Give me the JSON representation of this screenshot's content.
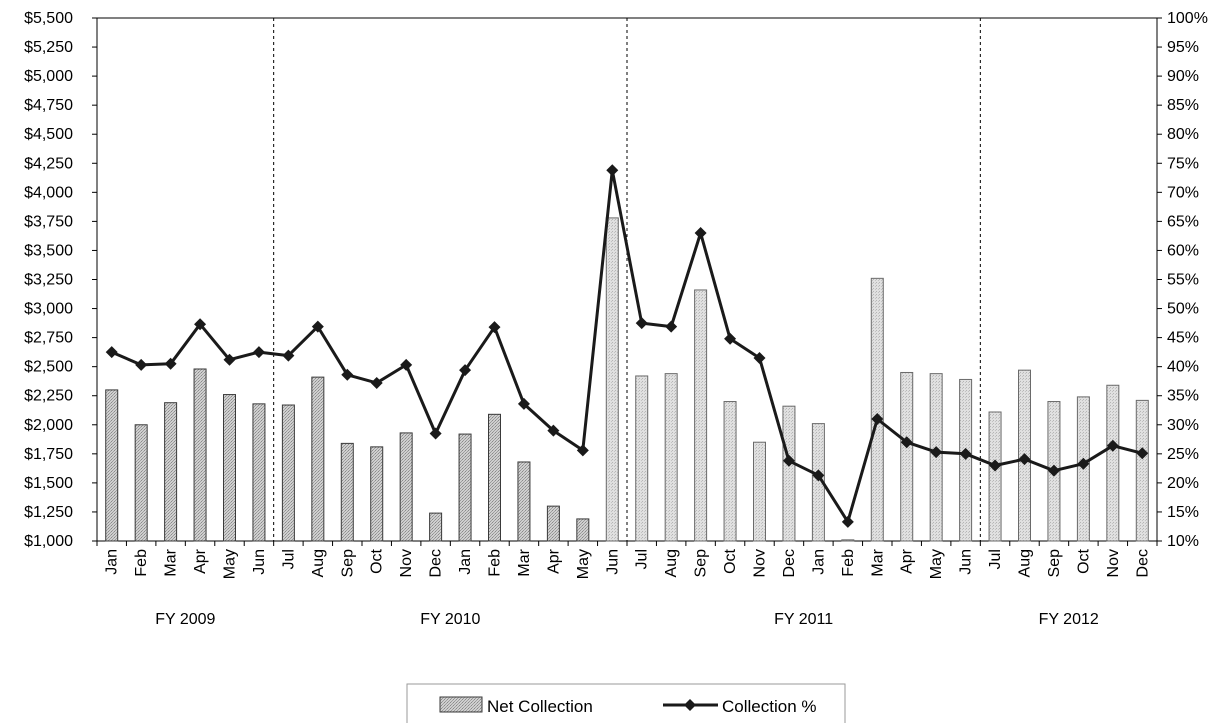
{
  "chart_data": {
    "type": "bar+line",
    "categories": [
      "Jan",
      "Feb",
      "Mar",
      "Apr",
      "May",
      "Jun",
      "Jul",
      "Aug",
      "Sep",
      "Oct",
      "Nov",
      "Dec",
      "Jan",
      "Feb",
      "Mar",
      "Apr",
      "May",
      "Jun",
      "Jul",
      "Aug",
      "Sep",
      "Oct",
      "Nov",
      "Dec",
      "Jan",
      "Feb",
      "Mar",
      "Apr",
      "May",
      "Jun",
      "Jul",
      "Aug",
      "Sep",
      "Oct",
      "Nov",
      "Dec"
    ],
    "groups": [
      {
        "label": "FY 2009",
        "start": 0,
        "end": 5
      },
      {
        "label": "FY 2010",
        "start": 6,
        "end": 17
      },
      {
        "label": "FY 2011",
        "start": 18,
        "end": 29
      },
      {
        "label": "FY 2012",
        "start": 30,
        "end": 35
      }
    ],
    "series": [
      {
        "name": "Net Collection",
        "type": "bar",
        "axis": "left",
        "values": [
          2300,
          2000,
          2190,
          2480,
          2260,
          2180,
          2170,
          2410,
          1840,
          1810,
          1930,
          1240,
          1920,
          2090,
          1680,
          1300,
          1190,
          3780,
          2420,
          2440,
          3160,
          2200,
          1850,
          2160,
          2010,
          1010,
          3260,
          2450,
          2440,
          2390,
          2110,
          2470,
          2200,
          2240,
          2340,
          2210
        ]
      },
      {
        "name": "Collection %",
        "type": "line",
        "axis": "right",
        "values": [
          42.5,
          40.3,
          40.5,
          47.3,
          41.2,
          42.5,
          41.9,
          46.9,
          38.6,
          37.2,
          40.3,
          28.5,
          39.4,
          46.8,
          33.6,
          29.0,
          25.6,
          73.8,
          47.5,
          46.9,
          63.0,
          44.8,
          41.5,
          23.8,
          21.3,
          13.3,
          31.0,
          27.0,
          25.3,
          25.0,
          23.0,
          24.1,
          22.1,
          23.3,
          26.4,
          25.1
        ]
      }
    ],
    "left_axis": {
      "min": 1000,
      "max": 5500,
      "ticks": [
        "$1,000",
        "$1,250",
        "$1,500",
        "$1,750",
        "$2,000",
        "$2,250",
        "$2,500",
        "$2,750",
        "$3,000",
        "$3,250",
        "$3,500",
        "$3,750",
        "$4,000",
        "$4,250",
        "$4,500",
        "$4,750",
        "$5,000",
        "$5,250",
        "$5,500"
      ]
    },
    "right_axis": {
      "min": 10,
      "max": 100,
      "ticks": [
        "10%",
        "15%",
        "20%",
        "25%",
        "30%",
        "35%",
        "40%",
        "45%",
        "50%",
        "55%",
        "60%",
        "65%",
        "70%",
        "75%",
        "80%",
        "85%",
        "90%",
        "95%",
        "100%"
      ]
    },
    "dividers_after": [
      5,
      17,
      29
    ],
    "shaded_bars_from_index": 17,
    "legend": {
      "position": "bottom",
      "items": [
        "Net Collection",
        "Collection %"
      ]
    },
    "grid": false,
    "colors": {
      "bar_fill_dark": "#c4c4c4",
      "bar_fill_light": "#dadada",
      "bar_stroke": "#3a3a3a",
      "line": "#1a1a1a",
      "axis": "#000000"
    }
  }
}
